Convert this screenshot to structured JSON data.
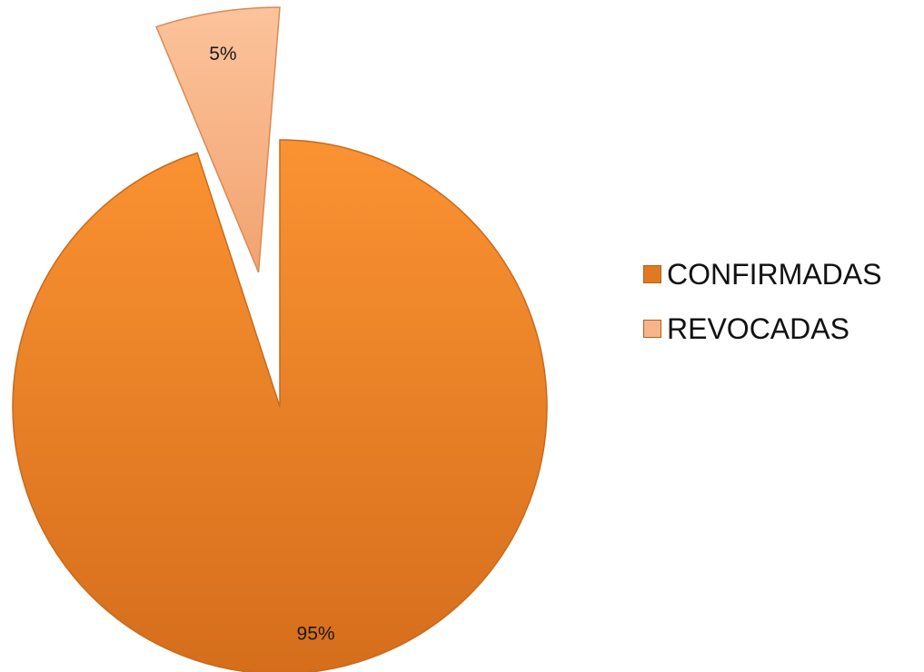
{
  "chart_data": {
    "type": "pie",
    "categories": [
      "CONFIRMADAS",
      "REVOCADAS"
    ],
    "values": [
      95,
      5
    ],
    "value_labels": [
      "95%",
      "5%"
    ],
    "exploded": [
      false,
      true
    ],
    "colors": [
      "#f08a2c",
      "#f6b48c"
    ],
    "start_angle_deg": 0,
    "direction": "clockwise",
    "legend_position": "right",
    "title": ""
  },
  "legend": {
    "items": [
      {
        "label": "CONFIRMADAS",
        "color": "#e07a22"
      },
      {
        "label": "REVOCADAS",
        "color": "#f6b48c"
      }
    ]
  }
}
